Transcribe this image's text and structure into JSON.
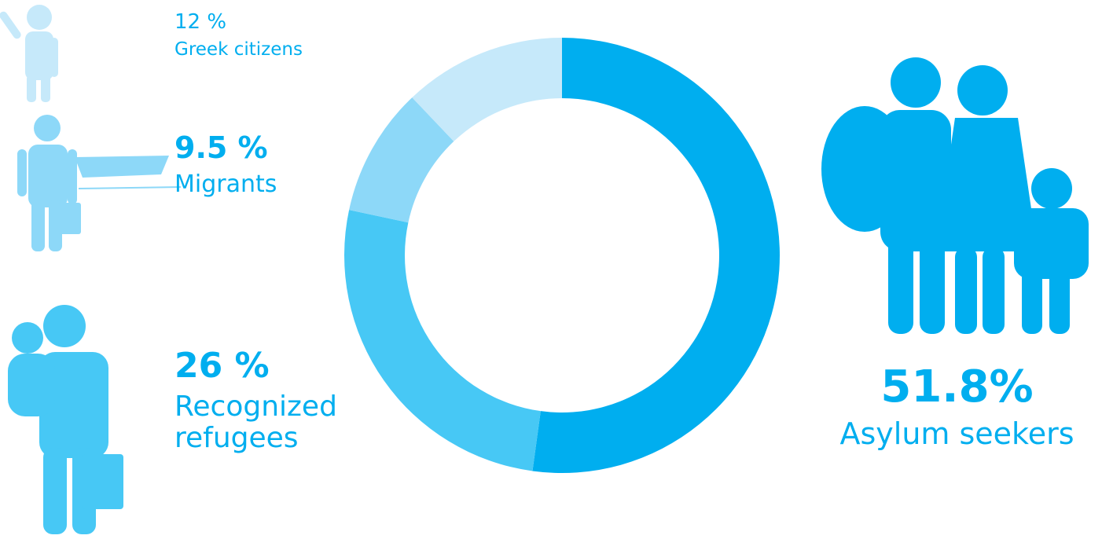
{
  "chart_data": {
    "type": "donut",
    "categories": [
      "Asylum seekers",
      "Recognized refugees",
      "Migrants",
      "Greek citizens"
    ],
    "values": [
      51.8,
      26,
      9.5,
      12
    ],
    "value_labels": [
      "51.8%",
      "26 %",
      "9.5 %",
      "12 %"
    ],
    "colors": [
      "#00aeef",
      "#47c8f5",
      "#8dd8f8",
      "#c6e9fa"
    ]
  }
}
